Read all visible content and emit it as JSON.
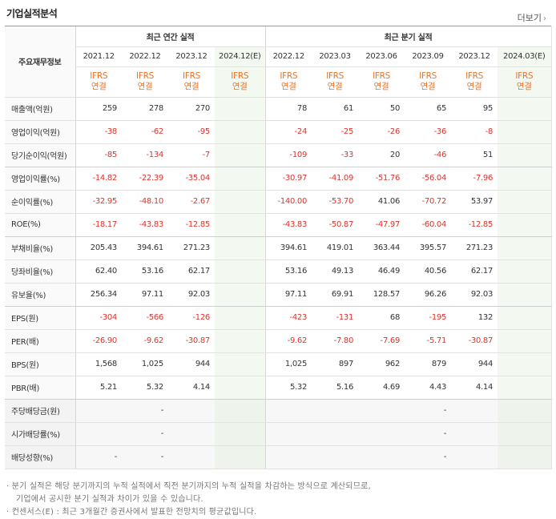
{
  "section_title": "기업실적분석",
  "more_label": "더보기",
  "header": {
    "corner": "주요재무정보",
    "annual_group": "최근 연간 실적",
    "quarter_group": "최근 분기 실적",
    "annual_periods": [
      "2021.12",
      "2022.12",
      "2023.12",
      "2024.12(E)"
    ],
    "quarter_periods": [
      "2022.12",
      "2023.03",
      "2023.06",
      "2023.09",
      "2023.12",
      "2024.03(E)"
    ],
    "basis_top": "IFRS",
    "basis_bottom": "연결"
  },
  "rows": [
    {
      "label": "매출액(억원)",
      "annual": [
        "259",
        "278",
        "270",
        ""
      ],
      "quarter": [
        "78",
        "61",
        "50",
        "65",
        "95",
        ""
      ]
    },
    {
      "label": "영업이익(억원)",
      "annual": [
        "-38",
        "-62",
        "-95",
        ""
      ],
      "quarter": [
        "-24",
        "-25",
        "-26",
        "-36",
        "-8",
        ""
      ]
    },
    {
      "label": "당기순이익(억원)",
      "annual": [
        "-85",
        "-134",
        "-7",
        ""
      ],
      "quarter": [
        "-109",
        "-33",
        "20",
        "-46",
        "51",
        ""
      ]
    },
    {
      "label": "영업이익률(%)",
      "annual": [
        "-14.82",
        "-22.39",
        "-35.04",
        ""
      ],
      "quarter": [
        "-30.97",
        "-41.09",
        "-51.76",
        "-56.04",
        "-7.96",
        ""
      ]
    },
    {
      "label": "순이익률(%)",
      "annual": [
        "-32.95",
        "-48.10",
        "-2.67",
        ""
      ],
      "quarter": [
        "-140.00",
        "-53.70",
        "41.06",
        "-70.72",
        "53.97",
        ""
      ]
    },
    {
      "label": "ROE(%)",
      "annual": [
        "-18.17",
        "-43.83",
        "-12.85",
        ""
      ],
      "quarter": [
        "-43.83",
        "-50.87",
        "-47.97",
        "-60.04",
        "-12.85",
        ""
      ]
    },
    {
      "label": "부채비율(%)",
      "annual": [
        "205.43",
        "394.61",
        "271.23",
        ""
      ],
      "quarter": [
        "394.61",
        "419.01",
        "363.44",
        "395.57",
        "271.23",
        ""
      ]
    },
    {
      "label": "당좌비율(%)",
      "annual": [
        "62.40",
        "53.16",
        "62.17",
        ""
      ],
      "quarter": [
        "53.16",
        "49.13",
        "46.49",
        "40.56",
        "62.17",
        ""
      ]
    },
    {
      "label": "유보율(%)",
      "annual": [
        "256.34",
        "97.11",
        "92.03",
        ""
      ],
      "quarter": [
        "97.11",
        "69.91",
        "128.57",
        "96.26",
        "92.03",
        ""
      ]
    },
    {
      "label": "EPS(원)",
      "annual": [
        "-304",
        "-566",
        "-126",
        ""
      ],
      "quarter": [
        "-423",
        "-131",
        "68",
        "-195",
        "132",
        ""
      ]
    },
    {
      "label": "PER(배)",
      "annual": [
        "-26.90",
        "-9.62",
        "-30.87",
        ""
      ],
      "quarter": [
        "-9.62",
        "-7.80",
        "-7.69",
        "-5.71",
        "-30.87",
        ""
      ]
    },
    {
      "label": "BPS(원)",
      "annual": [
        "1,568",
        "1,025",
        "944",
        ""
      ],
      "quarter": [
        "1,025",
        "897",
        "962",
        "879",
        "944",
        ""
      ]
    },
    {
      "label": "PBR(배)",
      "annual": [
        "5.21",
        "5.32",
        "4.14",
        ""
      ],
      "quarter": [
        "5.32",
        "5.16",
        "4.69",
        "4.43",
        "4.14",
        ""
      ]
    },
    {
      "label": "주당배당금(원)",
      "annual": [
        "",
        "-",
        "",
        ""
      ],
      "quarter": [
        "",
        "",
        "",
        "-",
        "",
        ""
      ]
    },
    {
      "label": "시가배당률(%)",
      "annual": [
        "",
        "-",
        "",
        ""
      ],
      "quarter": [
        "",
        "",
        "",
        "-",
        "",
        ""
      ]
    },
    {
      "label": "배당성향(%)",
      "annual": [
        "-",
        "-",
        "",
        ""
      ],
      "quarter": [
        "",
        "",
        "",
        "-",
        "",
        ""
      ]
    }
  ],
  "notes": {
    "note1_line1": "· 분기 실적은 해당 분기까지의 누적 실적에서 직전 분기까지의 누적 실적을 차감하는 방식으로 계산되므로,",
    "note1_line2": "기업에서 공시한 분기 실적과 차이가 있을 수 있습니다.",
    "note2": "· 컨센서스(E) : 최근 3개월간 증권사에서 발표한 전망치의 평균값입니다."
  },
  "colors": {
    "negative": "#e0322b",
    "ifrs": "#e8742a",
    "estimate_bg": "#f3f9f1"
  }
}
